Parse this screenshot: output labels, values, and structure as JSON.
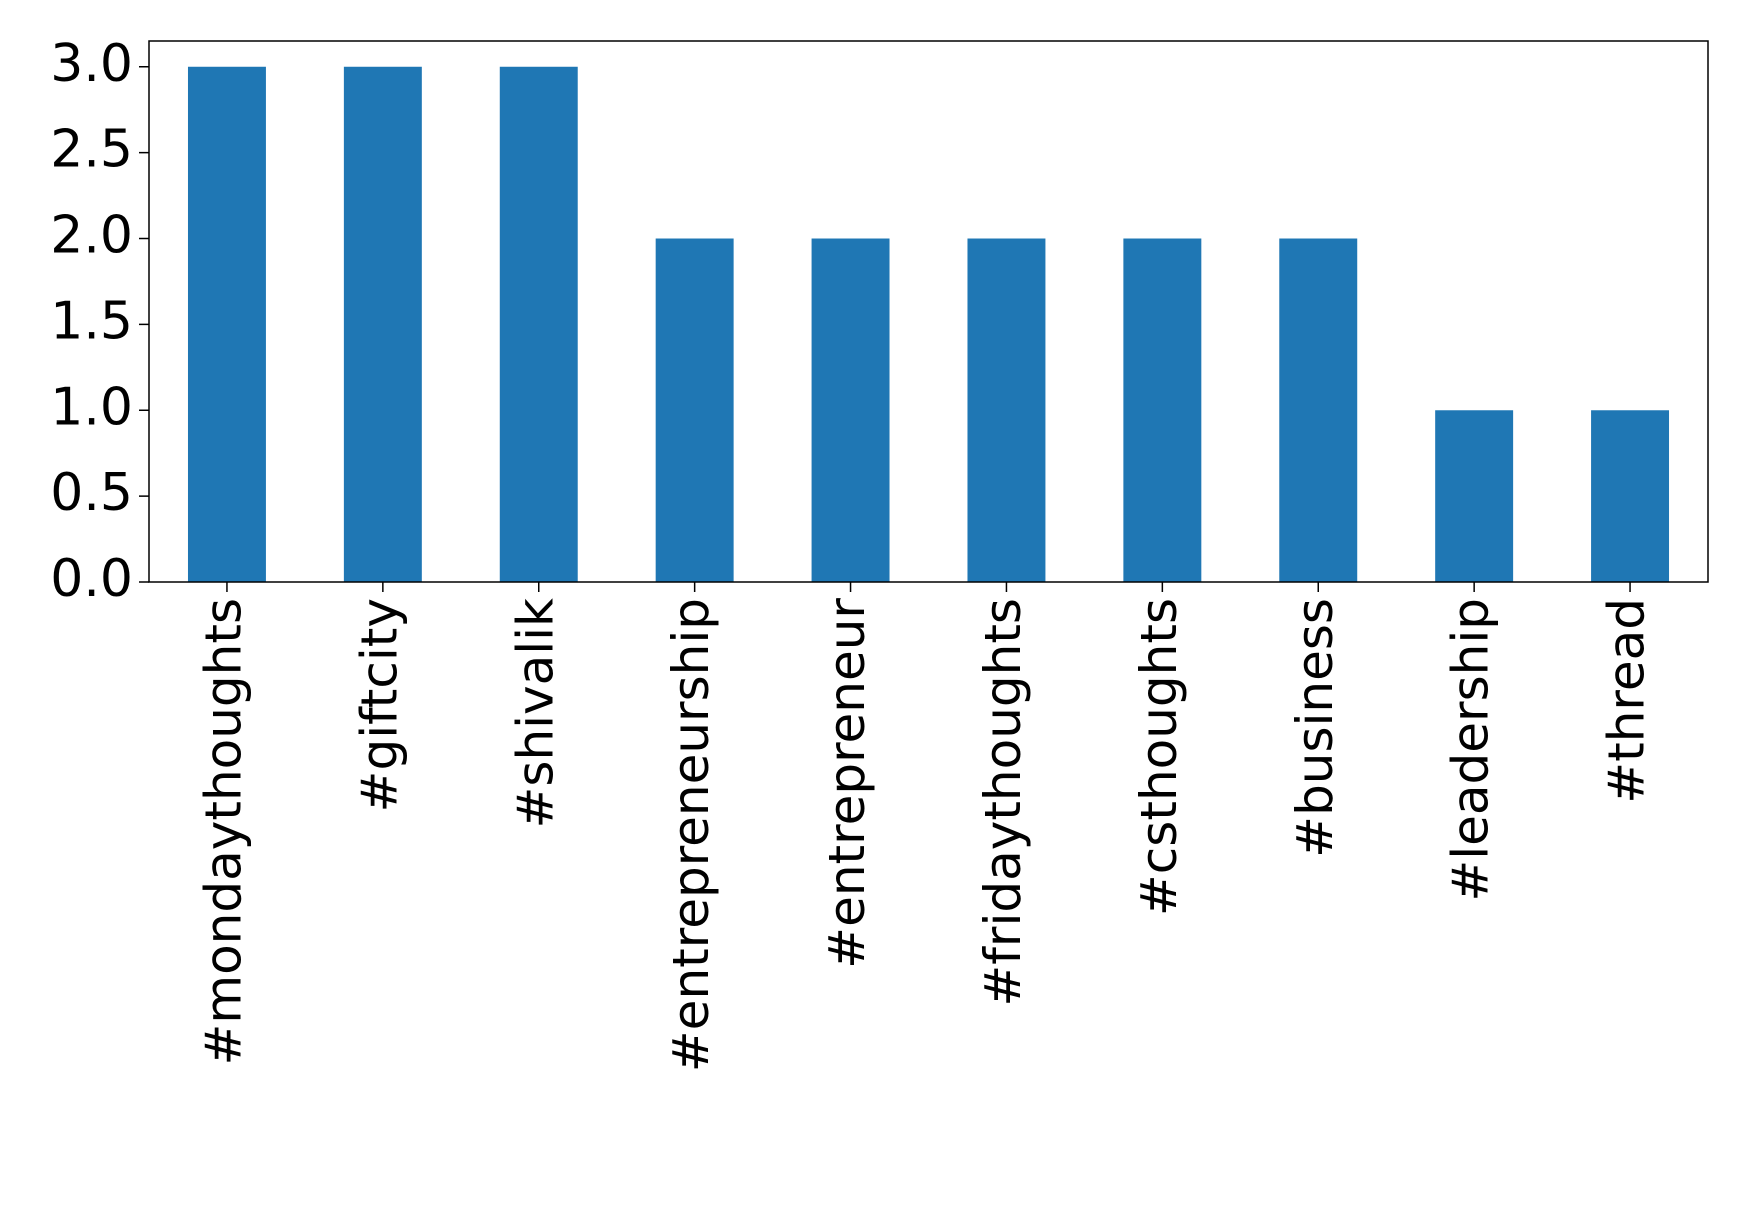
{
  "chart_data": {
    "type": "bar",
    "categories": [
      "#mondaythoughts",
      "#giftcity",
      "#shivalik",
      "#entrepreneurship",
      "#entrepreneur",
      "#fridaythoughts",
      "#csthoughts",
      "#business",
      "#leadership",
      "#thread"
    ],
    "values": [
      3,
      3,
      3,
      2,
      2,
      2,
      2,
      2,
      1,
      1
    ],
    "color": "#1f77b4",
    "ylim": [
      0,
      3.15
    ],
    "yticks": [
      {
        "value": 0,
        "label": "0.0"
      },
      0.5,
      {
        "value": 1,
        "label": "1.0"
      },
      1.5,
      {
        "value": 2,
        "label": "2.0"
      },
      2.5,
      {
        "value": 3,
        "label": "3.0"
      }
    ],
    "grid": false
  }
}
